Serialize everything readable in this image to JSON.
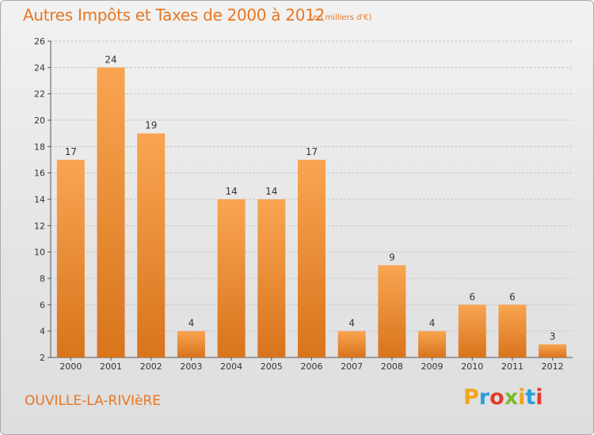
{
  "header": {
    "title": "Autres Impôts et Taxes de 2000 à 2012",
    "subtitle": "(en milliers d'€)"
  },
  "footer": {
    "commune": "OUVILLE-LA-RIVIèRE",
    "logo": {
      "letters": [
        "P",
        "r",
        "o",
        "x",
        "i",
        "t",
        "i"
      ],
      "colors": [
        "#f5a31a",
        "#2a9fd8",
        "#e23b2e",
        "#7cbb2a",
        "#f5a31a",
        "#2a9fd8",
        "#e23b2e"
      ]
    }
  },
  "colors": {
    "accent": "#e87722",
    "bar_light": "#f9a551",
    "bar_dark": "#d8741c"
  },
  "chart_data": {
    "type": "bar",
    "title": "Autres Impôts et Taxes de 2000 à 2012",
    "subtitle": "(en milliers d'€)",
    "categories": [
      "2000",
      "2001",
      "2002",
      "2003",
      "2004",
      "2005",
      "2006",
      "2007",
      "2008",
      "2009",
      "2010",
      "2011",
      "2012"
    ],
    "values": [
      17,
      24,
      19,
      4,
      14,
      14,
      17,
      4,
      9,
      4,
      6,
      6,
      3
    ],
    "data_labels": [
      "17",
      "24",
      "19",
      "4",
      "14",
      "14",
      "17",
      "4",
      "9",
      "4",
      "6",
      "6",
      "3"
    ],
    "ylim": [
      2,
      26
    ],
    "yticks": [
      2,
      4,
      6,
      8,
      10,
      12,
      14,
      16,
      18,
      20,
      22,
      24,
      26
    ],
    "xlabel": "",
    "ylabel": "",
    "grid": true
  }
}
